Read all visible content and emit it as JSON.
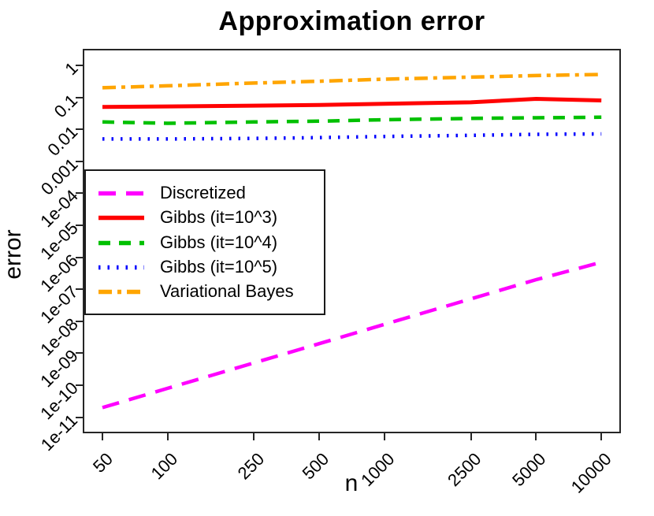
{
  "chart_data": {
    "type": "line",
    "title": "Approximation error",
    "xlabel": "n",
    "ylabel": "error",
    "x_scale": "log",
    "y_scale": "log",
    "grid": false,
    "legend_position": "middle-left",
    "x_ticks": [
      50,
      100,
      250,
      500,
      1000,
      2500,
      5000,
      10000
    ],
    "x_tick_labels": [
      "50",
      "100",
      "250",
      "500",
      "1000",
      "2500",
      "5000",
      "10000"
    ],
    "y_tick_values": [
      1,
      0.1,
      0.01,
      0.001,
      0.0001,
      1e-05,
      1e-06,
      1e-07,
      1e-08,
      1e-09,
      1e-10,
      1e-11
    ],
    "y_tick_labels": [
      "1",
      "0.1",
      "0.01",
      "0.001",
      "1e-04",
      "1e-05",
      "1e-06",
      "1e-07",
      "1e-08",
      "1e-09",
      "1e-10",
      "1e-11"
    ],
    "x_range": [
      50,
      10000
    ],
    "y_range": [
      1e-11,
      1
    ],
    "series": [
      {
        "name": "Discretized",
        "color": "#FF00FF",
        "style": "longdash",
        "values": [
          2e-11,
          8e-11,
          5e-10,
          2e-09,
          8e-09,
          5e-08,
          2e-07,
          7e-07
        ]
      },
      {
        "name": "Gibbs (it=10^3)",
        "color": "#FF0000",
        "style": "solid",
        "values": [
          0.05,
          0.052,
          0.055,
          0.058,
          0.063,
          0.07,
          0.09,
          0.08
        ]
      },
      {
        "name": "Gibbs (it=10^4)",
        "color": "#00C000",
        "style": "dash",
        "values": [
          0.017,
          0.0155,
          0.017,
          0.018,
          0.02,
          0.022,
          0.023,
          0.024
        ]
      },
      {
        "name": "Gibbs (it=10^5)",
        "color": "#0000FF",
        "style": "dot",
        "values": [
          0.005,
          0.005,
          0.0052,
          0.0055,
          0.006,
          0.0065,
          0.007,
          0.0072
        ]
      },
      {
        "name": "Variational Bayes",
        "color": "#FFA500",
        "style": "dashdot",
        "values": [
          0.2,
          0.23,
          0.28,
          0.32,
          0.37,
          0.43,
          0.48,
          0.52
        ]
      }
    ]
  }
}
